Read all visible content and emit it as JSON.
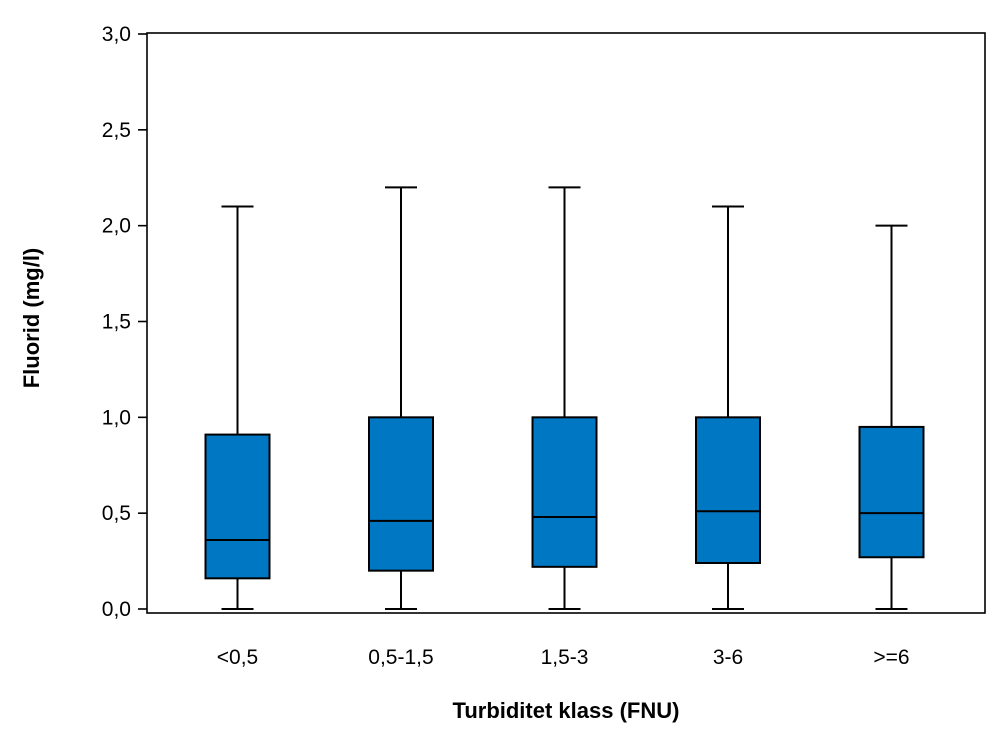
{
  "chart_data": {
    "type": "box",
    "xlabel": "Turbiditet klass (FNU)",
    "ylabel": "Fluorid (mg/l)",
    "ylim": [
      0,
      3
    ],
    "yticks": [
      {
        "value": 0,
        "label": "0,0"
      },
      {
        "value": 0.5,
        "label": "0,5"
      },
      {
        "value": 1.0,
        "label": "1,0"
      },
      {
        "value": 1.5,
        "label": "1,5"
      },
      {
        "value": 2.0,
        "label": "2,0"
      },
      {
        "value": 2.5,
        "label": "2,5"
      },
      {
        "value": 3.0,
        "label": "3,0"
      }
    ],
    "categories": [
      "<0,5",
      "0,5-1,5",
      "1,5-3",
      "3-6",
      ">=6"
    ],
    "boxes": [
      {
        "category": "<0,5",
        "min": 0.0,
        "q1": 0.16,
        "median": 0.36,
        "q3": 0.91,
        "max": 2.1
      },
      {
        "category": "0,5-1,5",
        "min": 0.0,
        "q1": 0.2,
        "median": 0.46,
        "q3": 1.0,
        "max": 2.2
      },
      {
        "category": "1,5-3",
        "min": 0.0,
        "q1": 0.22,
        "median": 0.48,
        "q3": 1.0,
        "max": 2.2
      },
      {
        "category": "3-6",
        "min": 0.0,
        "q1": 0.24,
        "median": 0.51,
        "q3": 1.0,
        "max": 2.1
      },
      {
        "category": ">=6",
        "min": 0.0,
        "q1": 0.27,
        "median": 0.5,
        "q3": 0.95,
        "max": 2.0
      }
    ],
    "box_color": "#0077C2",
    "grid": false,
    "legend": "none"
  }
}
